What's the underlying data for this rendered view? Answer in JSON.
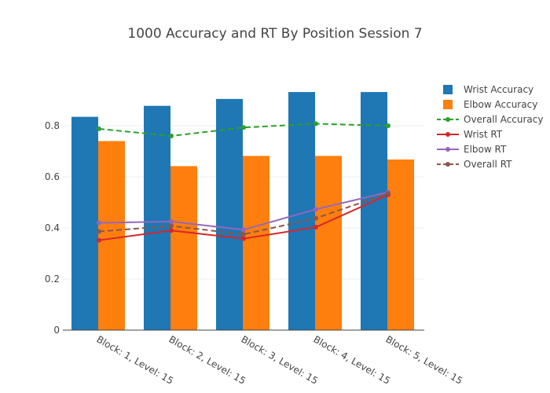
{
  "chart_data": {
    "type": "bar",
    "title": "1000 Accuracy and RT By Position Session 7",
    "xlabel": "",
    "ylabel": "",
    "ylim": [
      0,
      1.0
    ],
    "yticks": [
      "0",
      "0.2",
      "0.4",
      "0.6",
      "0.8"
    ],
    "grid": true,
    "legend_position": "right",
    "categories": [
      "Block: 1, Level: 15",
      "Block: 2, Level: 15",
      "Block: 3, Level: 15",
      "Block: 4, Level: 15",
      "Block: 5, Level: 15"
    ],
    "series": [
      {
        "name": "Wrist Accuracy",
        "kind": "bar",
        "color": "#1f77b4",
        "values": [
          0.835,
          0.878,
          0.905,
          0.932,
          0.932
        ]
      },
      {
        "name": "Elbow Accuracy",
        "kind": "bar",
        "color": "#ff7f0e",
        "values": [
          0.74,
          0.642,
          0.682,
          0.682,
          0.668
        ]
      },
      {
        "name": "Overall Accuracy",
        "kind": "line",
        "dash": true,
        "color": "#2ca02c",
        "values": [
          0.788,
          0.76,
          0.793,
          0.808,
          0.8
        ]
      },
      {
        "name": "Wrist RT",
        "kind": "line",
        "dash": false,
        "color": "#d62728",
        "values": [
          0.352,
          0.39,
          0.358,
          0.403,
          0.53
        ]
      },
      {
        "name": "Elbow RT",
        "kind": "line",
        "dash": false,
        "color": "#9467bd",
        "values": [
          0.42,
          0.425,
          0.393,
          0.473,
          0.54
        ]
      },
      {
        "name": "Overall RT",
        "kind": "line",
        "dash": true,
        "color": "#8c564b",
        "values": [
          0.386,
          0.408,
          0.375,
          0.438,
          0.535
        ]
      }
    ]
  }
}
